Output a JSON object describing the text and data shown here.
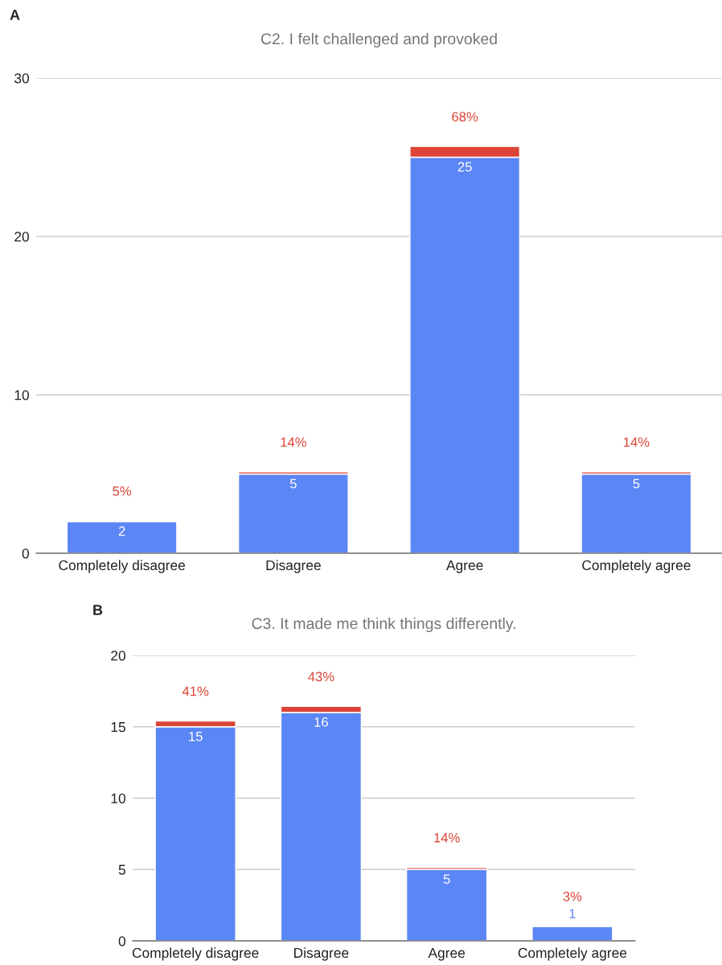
{
  "chart_data": [
    {
      "type": "bar",
      "title": "C2. I felt challenged and provoked",
      "annotations": [
        "A"
      ],
      "categories": [
        "Completely disagree",
        "Disagree",
        "Agree",
        "Completely agree"
      ],
      "stacked": true,
      "ylim": [
        0,
        30
      ],
      "yticks": [
        0,
        10,
        20,
        30
      ],
      "grid": "y",
      "legend": false,
      "series": [
        {
          "color": "#5b86f5",
          "values": [
            2,
            5,
            25,
            5
          ],
          "value_labels": [
            "2",
            "5",
            "25",
            "5"
          ]
        },
        {
          "color": "#db4437",
          "values": [
            0.05,
            0.14,
            0.68,
            0.14
          ],
          "value_labels": [
            "5%",
            "14%",
            "68%",
            "14%"
          ]
        }
      ]
    },
    {
      "type": "bar",
      "title": "C3. It made me think things differently.",
      "annotations": [
        "B"
      ],
      "categories": [
        "Completely disagree",
        "Disagree",
        "Agree",
        "Completely agree"
      ],
      "stacked": true,
      "ylim": [
        0,
        20
      ],
      "yticks": [
        0,
        5,
        10,
        15,
        20
      ],
      "grid": "y",
      "legend": false,
      "series": [
        {
          "color": "#5b86f5",
          "values": [
            15,
            16,
            5,
            1
          ],
          "value_labels": [
            "15",
            "16",
            "5",
            "1"
          ]
        },
        {
          "color": "#db4437",
          "values": [
            0.41,
            0.43,
            0.14,
            0.03
          ],
          "value_labels": [
            "41%",
            "43%",
            "14%",
            "3%"
          ]
        }
      ]
    }
  ]
}
